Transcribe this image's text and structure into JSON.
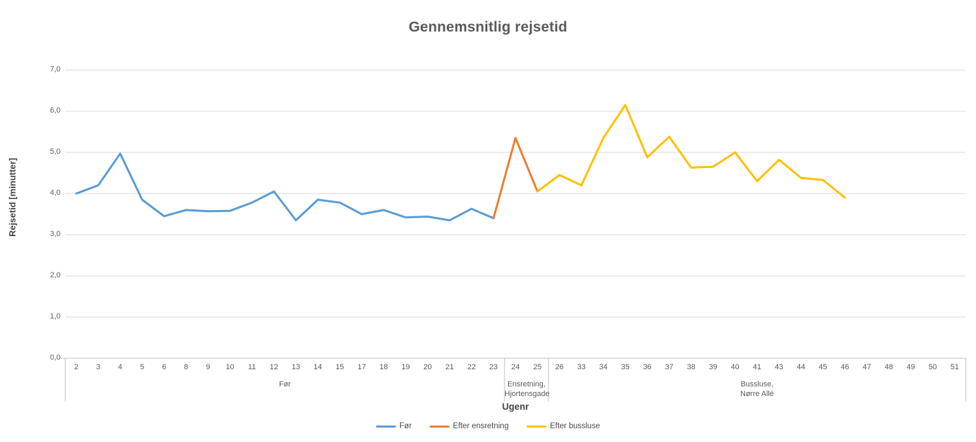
{
  "chart_data": {
    "type": "line",
    "title": "Gennemsnitlig rejsetid",
    "xlabel": "Ugenr",
    "ylabel": "Rejsetid [minutter]",
    "ylim": [
      0,
      7
    ],
    "ytick_labels": [
      "0,0",
      "1,0",
      "2,0",
      "3,0",
      "4,0",
      "5,0",
      "6,0",
      "7,0"
    ],
    "grid": true,
    "legend_position": "bottom",
    "axis_color": "#bfbfbf",
    "gridline_color": "#d9d9d9",
    "text_color": "#595959",
    "categories": [
      "2",
      "3",
      "4",
      "5",
      "6",
      "8",
      "9",
      "10",
      "11",
      "12",
      "13",
      "14",
      "15",
      "17",
      "18",
      "19",
      "20",
      "21",
      "22",
      "23",
      "24",
      "25",
      "26",
      "33",
      "34",
      "35",
      "36",
      "37",
      "38",
      "39",
      "40",
      "41",
      "43",
      "44",
      "45",
      "46",
      "47",
      "48",
      "49",
      "50",
      "51"
    ],
    "category_groups": [
      {
        "label": "Før",
        "start_index": 0,
        "end_index": 19
      },
      {
        "label": "Ensretning,\nHjortensgade",
        "start_index": 20,
        "end_index": 21
      },
      {
        "label": "Bussluse,\nNørre Allé",
        "start_index": 22,
        "end_index": 40
      }
    ],
    "series": [
      {
        "name": "Før",
        "color": "#5b9bd5",
        "values": [
          4.0,
          4.2,
          4.97,
          3.85,
          3.45,
          3.6,
          3.57,
          3.58,
          3.78,
          4.05,
          3.35,
          3.85,
          3.78,
          3.5,
          3.6,
          3.42,
          3.44,
          3.35,
          3.63,
          3.4,
          null,
          null,
          null,
          null,
          null,
          null,
          null,
          null,
          null,
          null,
          null,
          null,
          null,
          null,
          null,
          null,
          null,
          null,
          null,
          null,
          null
        ]
      },
      {
        "name": "Efter ensretning",
        "color": "#ed7d31",
        "values": [
          null,
          null,
          null,
          null,
          null,
          null,
          null,
          null,
          null,
          null,
          null,
          null,
          null,
          null,
          null,
          null,
          null,
          null,
          null,
          3.4,
          5.35,
          4.05,
          null,
          null,
          null,
          null,
          null,
          null,
          null,
          null,
          null,
          null,
          null,
          null,
          null,
          null,
          null,
          null,
          null,
          null,
          null
        ]
      },
      {
        "name": "Efter bussluse",
        "color": "#ffc000",
        "values": [
          null,
          null,
          null,
          null,
          null,
          null,
          null,
          null,
          null,
          null,
          null,
          null,
          null,
          null,
          null,
          null,
          null,
          null,
          null,
          null,
          null,
          4.05,
          4.45,
          4.2,
          5.35,
          6.15,
          4.88,
          5.38,
          4.63,
          4.65,
          5.0,
          4.3,
          4.82,
          4.38,
          4.33,
          3.9,
          null,
          null,
          null,
          null,
          null
        ]
      }
    ]
  }
}
